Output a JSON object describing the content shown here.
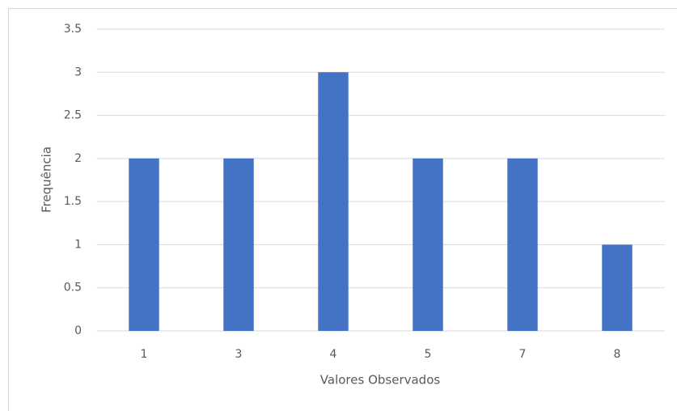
{
  "chart_data": {
    "type": "bar",
    "x_label": "Valores Observados",
    "y_label": "Frequência",
    "categories": [
      "1",
      "3",
      "4",
      "5",
      "7",
      "8"
    ],
    "values": [
      2,
      2,
      3,
      2,
      2,
      1
    ],
    "color": "#4472c4",
    "ylim": [
      0,
      3.5
    ],
    "yticks": [
      0,
      0.5,
      1,
      1.5,
      2,
      2.5,
      3,
      3.5
    ],
    "grid": true
  }
}
